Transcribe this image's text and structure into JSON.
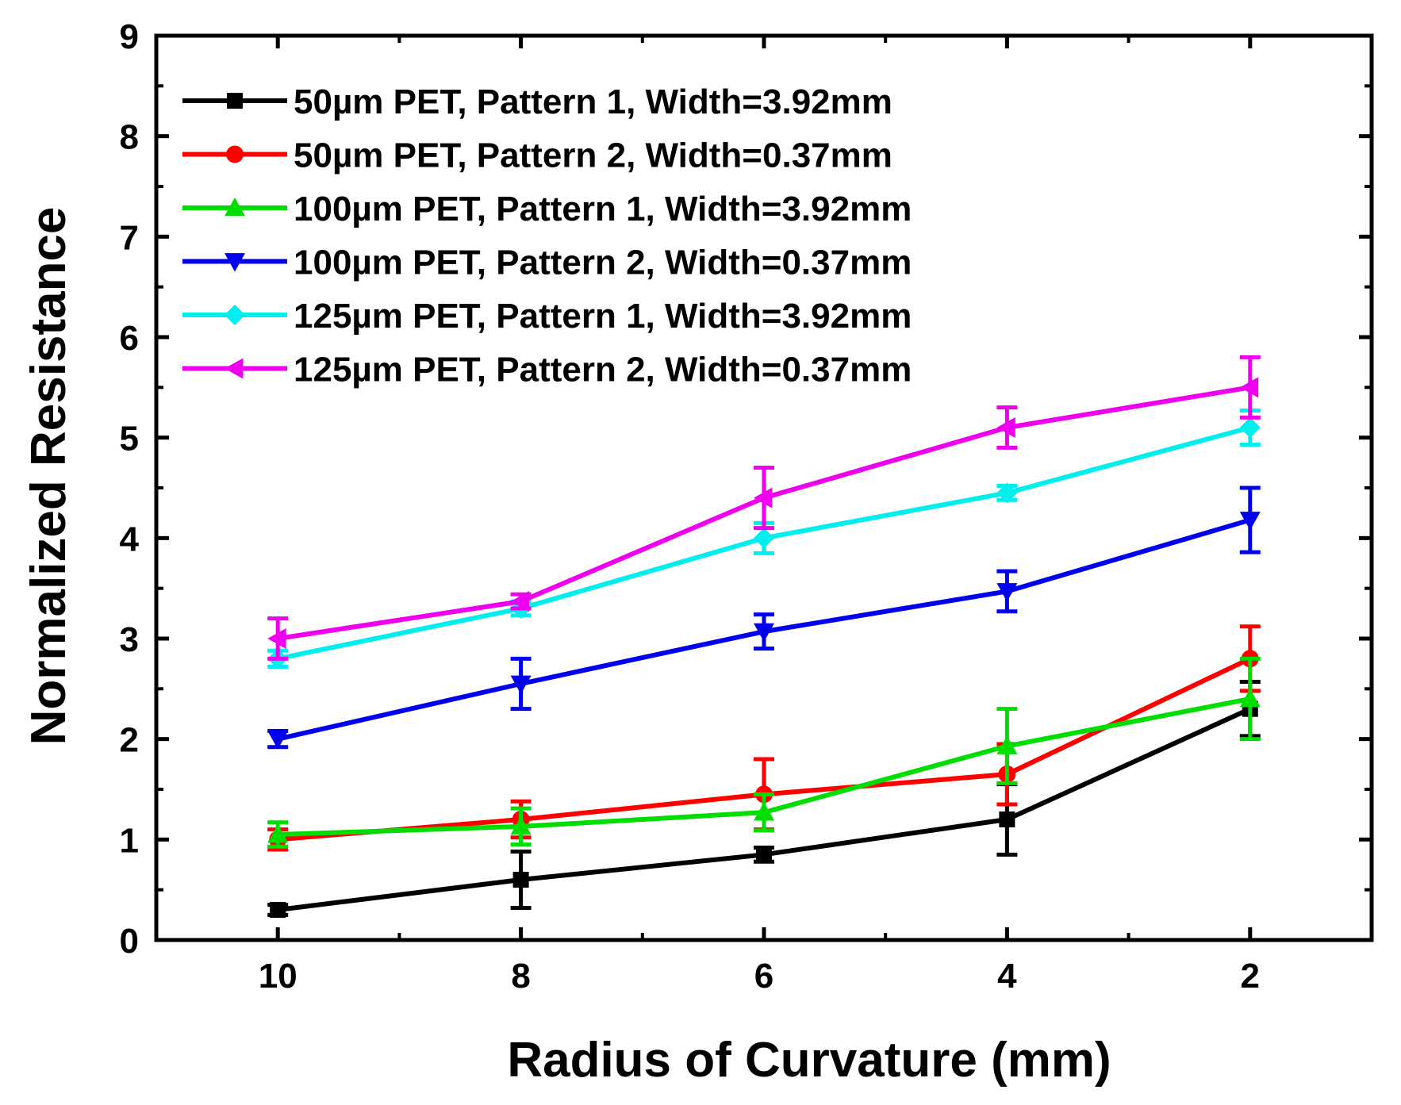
{
  "chart_data": {
    "type": "line",
    "title": "",
    "xlabel": "Radius of Curvature (mm)",
    "ylabel": "Normalized Resistance",
    "xlim": [
      11,
      1
    ],
    "ylim": [
      0,
      9
    ],
    "x_ticks": [
      10,
      8,
      6,
      4,
      2
    ],
    "x_tick_labels": [
      "10",
      "8",
      "6",
      "4",
      "2"
    ],
    "y_ticks": [
      0,
      1,
      2,
      3,
      4,
      5,
      6,
      7,
      8,
      9
    ],
    "y_tick_labels": [
      "0",
      "1",
      "2",
      "3",
      "4",
      "5",
      "6",
      "7",
      "8",
      "9"
    ],
    "legend_position": "top-left",
    "x": [
      10,
      8,
      6,
      4,
      2
    ],
    "series": [
      {
        "name": "50µm PET, Pattern 1, Width=3.92mm",
        "color": "#000000",
        "marker": "square",
        "values": [
          0.3,
          0.6,
          0.85,
          1.2,
          2.3
        ],
        "errors": [
          0.05,
          0.28,
          0.07,
          0.35,
          0.27
        ]
      },
      {
        "name": "50µm PET, Pattern 2, Width=0.37mm",
        "color": "#ff0000",
        "marker": "circle",
        "values": [
          1.0,
          1.2,
          1.45,
          1.65,
          2.8
        ],
        "errors": [
          0.1,
          0.18,
          0.35,
          0.3,
          0.32
        ]
      },
      {
        "name": "100µm PET, Pattern 1, Width=3.92mm",
        "color": "#00dd00",
        "marker": "triangle-up",
        "values": [
          1.05,
          1.13,
          1.27,
          1.93,
          2.4
        ],
        "errors": [
          0.12,
          0.18,
          0.18,
          0.37,
          0.4
        ]
      },
      {
        "name": "100µm PET, Pattern 2, Width=0.37mm",
        "color": "#0000ee",
        "marker": "triangle-down",
        "values": [
          2.0,
          2.55,
          3.07,
          3.47,
          4.18
        ],
        "errors": [
          0.08,
          0.25,
          0.17,
          0.2,
          0.32
        ]
      },
      {
        "name": "125µm PET, Pattern 1, Width=3.92mm",
        "color": "#00eeee",
        "marker": "diamond",
        "values": [
          2.8,
          3.3,
          4.0,
          4.45,
          5.1
        ],
        "errors": [
          0.08,
          0.07,
          0.15,
          0.07,
          0.17
        ]
      },
      {
        "name": "125µm PET, Pattern 2, Width=0.37mm",
        "color": "#ee00ee",
        "marker": "triangle-left",
        "values": [
          3.0,
          3.37,
          4.4,
          5.1,
          5.5
        ],
        "errors": [
          0.2,
          0.07,
          0.3,
          0.2,
          0.3
        ]
      }
    ]
  }
}
